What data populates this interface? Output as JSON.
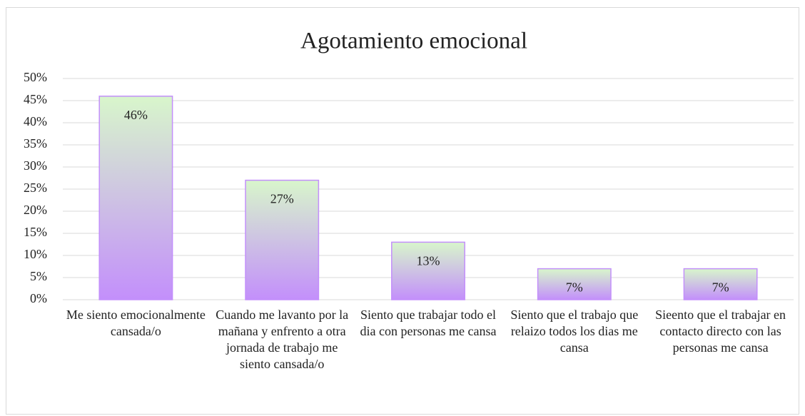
{
  "chart_data": {
    "type": "bar",
    "title": "Agotamiento emocional",
    "categories": [
      "Me siento emocionalmente cansada/o",
      "Cuando me lavanto por la mañana y enfrento a otra jornada de trabajo me siento cansada/o",
      "Siento que trabajar todo el dia con personas me cansa",
      "Siento que el trabajo que relaizo todos los dias me cansa",
      "Sieento que el trabajar en contacto directo con las personas me cansa"
    ],
    "values": [
      46,
      27,
      13,
      7,
      7
    ],
    "value_labels": [
      "46%",
      "27%",
      "13%",
      "7%",
      "7%"
    ],
    "color": [
      "#d8f6cb",
      "#c38ffb"
    ],
    "ylim": [
      0,
      50
    ],
    "yticks": [
      {
        "value": 0,
        "label": "0%"
      },
      {
        "value": 5,
        "label": "5%"
      },
      {
        "value": 10,
        "label": "10%"
      },
      {
        "value": 15,
        "label": "15%"
      },
      {
        "value": 20,
        "label": "20%"
      },
      {
        "value": 25,
        "label": "25%"
      },
      {
        "value": 30,
        "label": "30%"
      },
      {
        "value": 35,
        "label": "35%"
      },
      {
        "value": 40,
        "label": "40%"
      },
      {
        "value": 45,
        "label": "45%"
      },
      {
        "value": 50,
        "label": "50%"
      }
    ],
    "grid": true
  }
}
